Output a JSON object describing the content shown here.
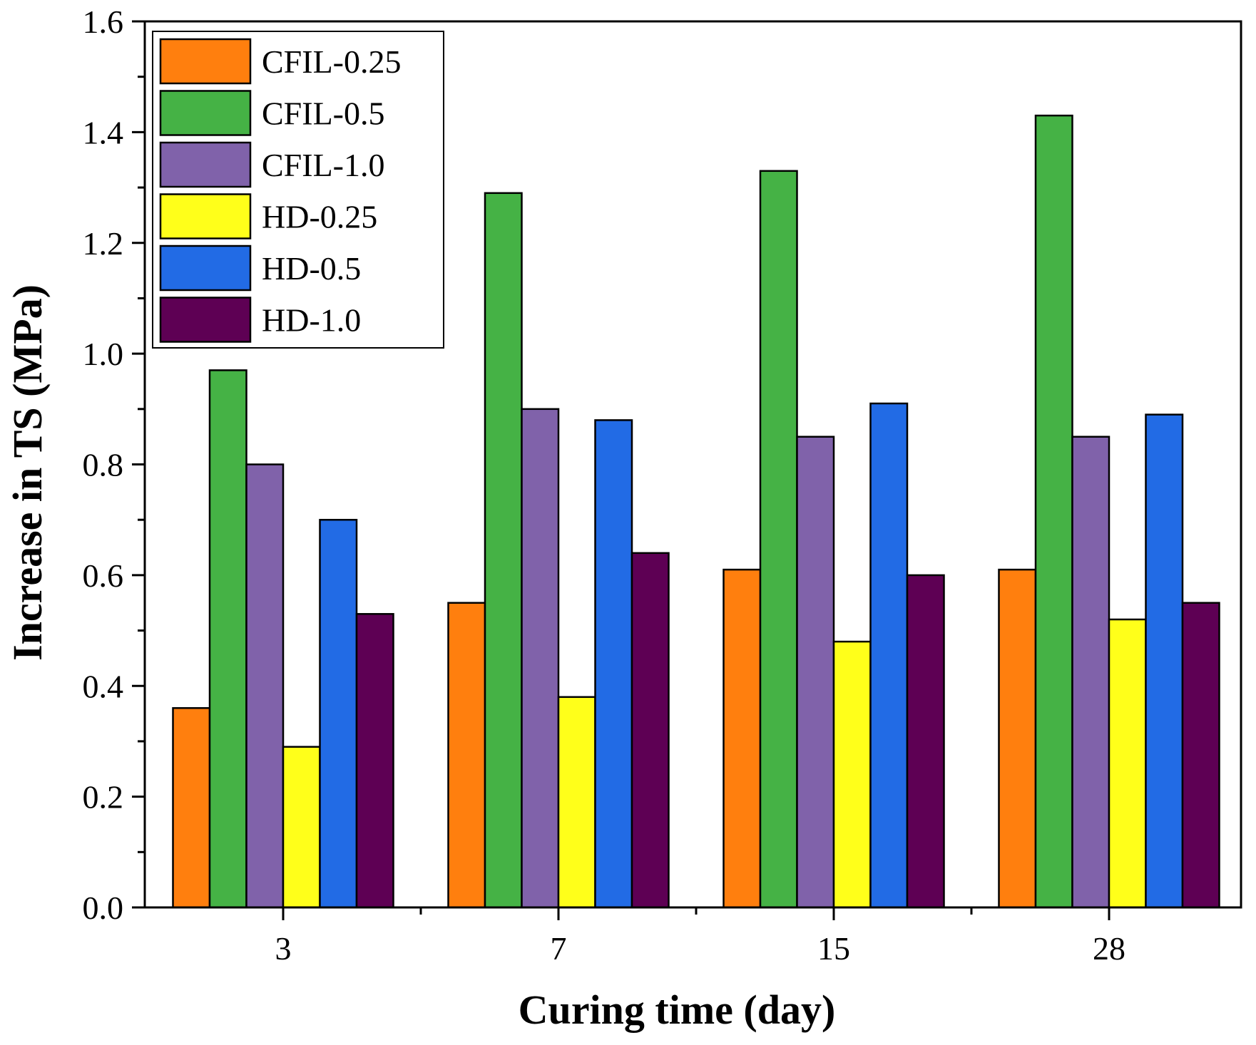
{
  "chart_data": {
    "type": "bar",
    "title": "",
    "xlabel": "Curing time (day)",
    "ylabel": "Increase in TS (MPa)",
    "categories": [
      "3",
      "7",
      "15",
      "28"
    ],
    "ylim": [
      0.0,
      1.6
    ],
    "yticks": [
      0.0,
      0.2,
      0.4,
      0.6,
      0.8,
      1.0,
      1.2,
      1.4,
      1.6
    ],
    "ytick_labels": [
      "0.0",
      "0.2",
      "0.4",
      "0.6",
      "0.8",
      "1.0",
      "1.2",
      "1.4",
      "1.6"
    ],
    "grid": false,
    "legend_position": "top-left",
    "series": [
      {
        "name": "CFIL-0.25",
        "color": "#FF7F0E",
        "values": [
          0.36,
          0.55,
          0.61,
          0.61
        ]
      },
      {
        "name": "CFIL-0.5",
        "color": "#45B245",
        "values": [
          0.97,
          1.29,
          1.33,
          1.43
        ]
      },
      {
        "name": "CFIL-1.0",
        "color": "#8062AA",
        "values": [
          0.8,
          0.9,
          0.85,
          0.85
        ]
      },
      {
        "name": "HD-0.25",
        "color": "#FFFF1A",
        "values": [
          0.29,
          0.38,
          0.48,
          0.52
        ]
      },
      {
        "name": "HD-0.5",
        "color": "#226BE5",
        "values": [
          0.7,
          0.88,
          0.91,
          0.89
        ]
      },
      {
        "name": "HD-1.0",
        "color": "#5E0054",
        "values": [
          0.53,
          0.64,
          0.6,
          0.55
        ]
      }
    ]
  }
}
